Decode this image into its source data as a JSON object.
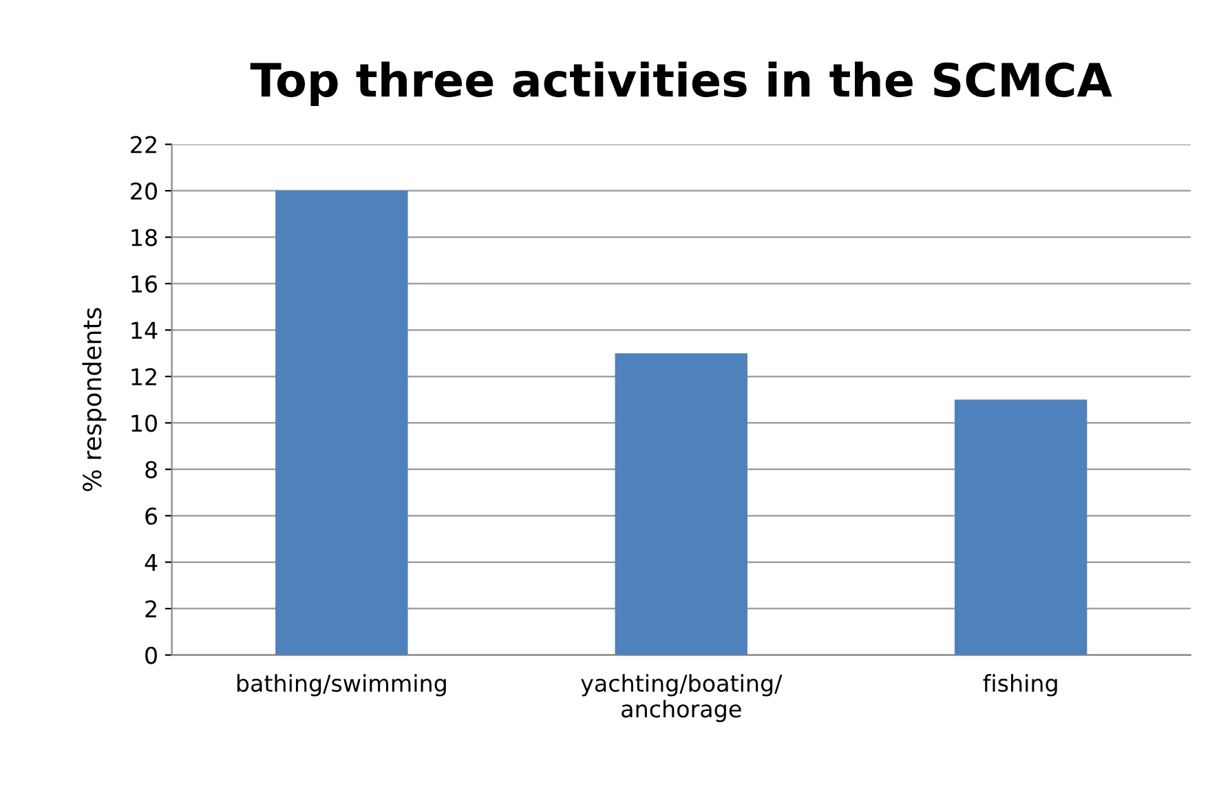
{
  "chart_data": {
    "type": "bar",
    "title": "Top three activities in the SCMCA",
    "ylabel": "% respondents",
    "categories": [
      "bathing/swimming",
      "yachting/boating/\nanchorage",
      "fishing"
    ],
    "values": [
      20,
      13,
      11
    ],
    "color": "#4f81bd",
    "ylim": [
      0,
      22
    ],
    "yticks": [
      0,
      2,
      4,
      6,
      8,
      10,
      12,
      14,
      16,
      18,
      20,
      22
    ],
    "grid": "y",
    "legend": false
  }
}
